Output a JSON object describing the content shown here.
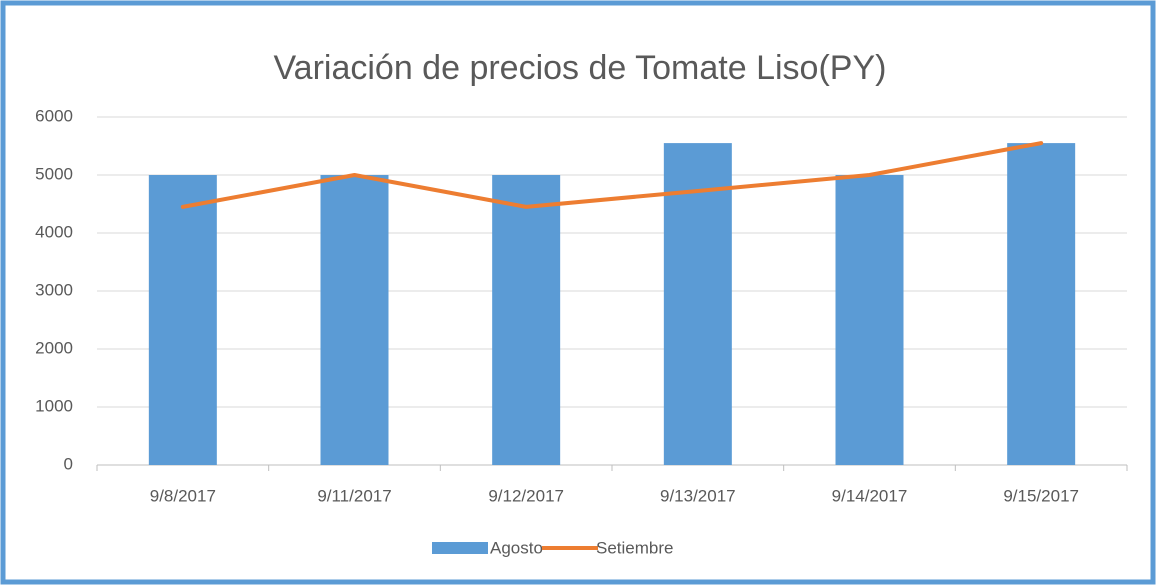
{
  "chart_data": {
    "type": "bar",
    "title": "Variación de precios de Tomate Liso(PY)",
    "categories": [
      "9/8/2017",
      "9/11/2017",
      "9/12/2017",
      "9/13/2017",
      "9/14/2017",
      "9/15/2017"
    ],
    "series": [
      {
        "name": "Agosto",
        "type": "bar",
        "color": "#5b9bd5",
        "values": [
          5000,
          5000,
          5000,
          5550,
          5000,
          5550
        ]
      },
      {
        "name": "Setiembre",
        "type": "line",
        "color": "#ed7d31",
        "values": [
          4450,
          5000,
          4450,
          4725,
          5000,
          5550
        ]
      }
    ],
    "ylim": [
      0,
      6000
    ],
    "yticks": [
      0,
      1000,
      2000,
      3000,
      4000,
      5000,
      6000
    ],
    "grid": true,
    "legend": "bottom"
  }
}
